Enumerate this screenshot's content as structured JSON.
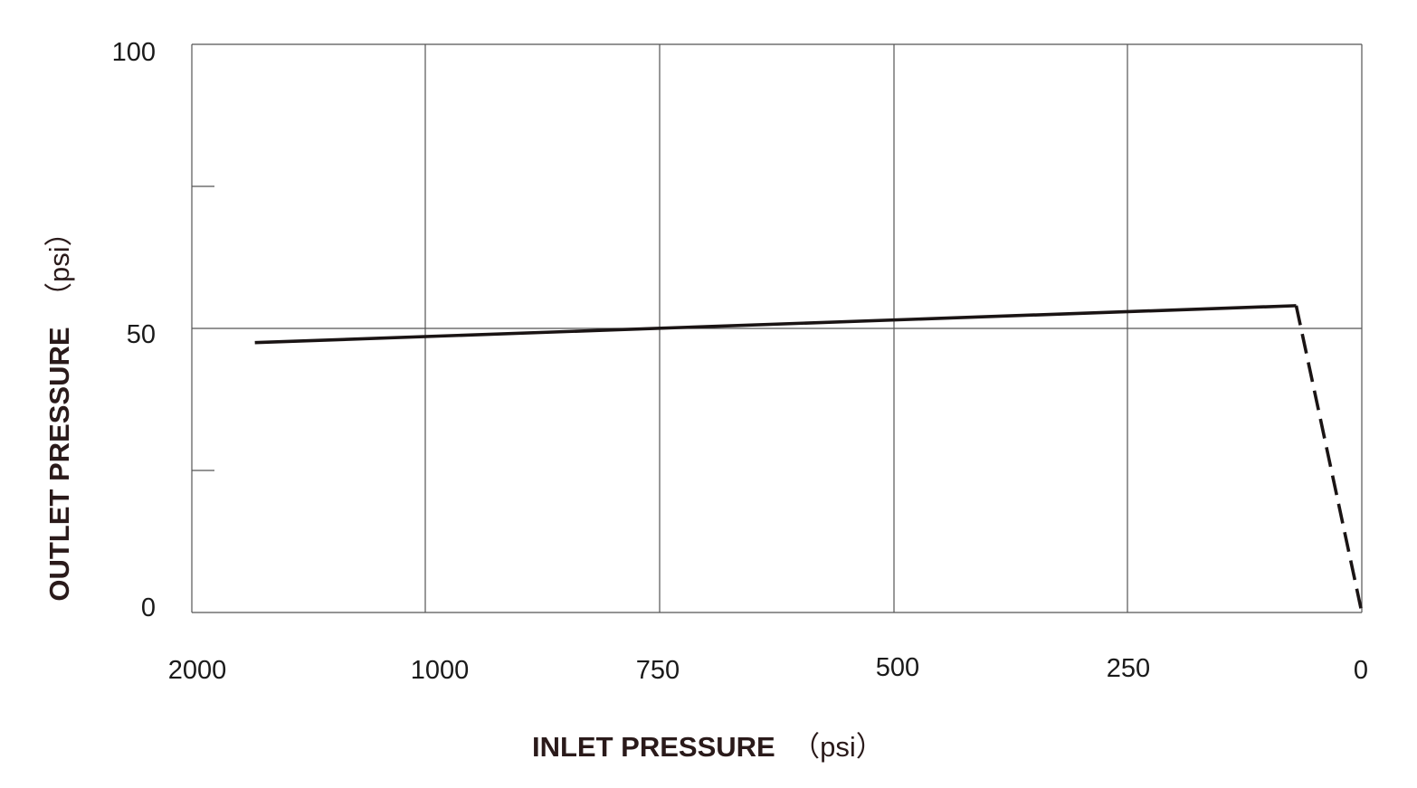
{
  "chart_data": {
    "type": "line",
    "xlabel": "INLET PRESSURE",
    "xlabel_unit": "（psi）",
    "ylabel": "OUTLET PRESSURE",
    "ylabel_unit": "（psi）",
    "x_tick_labels": [
      "2000",
      "1000",
      "750",
      "500",
      "250",
      "0"
    ],
    "y_tick_labels": [
      "100",
      "50",
      "0"
    ],
    "x_axis_reversed": true,
    "x_axis_note": "categorical-style spacing: first interval 2000-1000, then equal 250 steps",
    "ylim": [
      0,
      100
    ],
    "grid": true,
    "series": [
      {
        "style": "solid",
        "x": [
          1730,
          70
        ],
        "y": [
          47.5,
          54
        ]
      },
      {
        "style": "dashed",
        "x": [
          70,
          0
        ],
        "y": [
          54,
          0
        ]
      }
    ],
    "line_color": "#1a1414",
    "grid_color": "#555555"
  }
}
